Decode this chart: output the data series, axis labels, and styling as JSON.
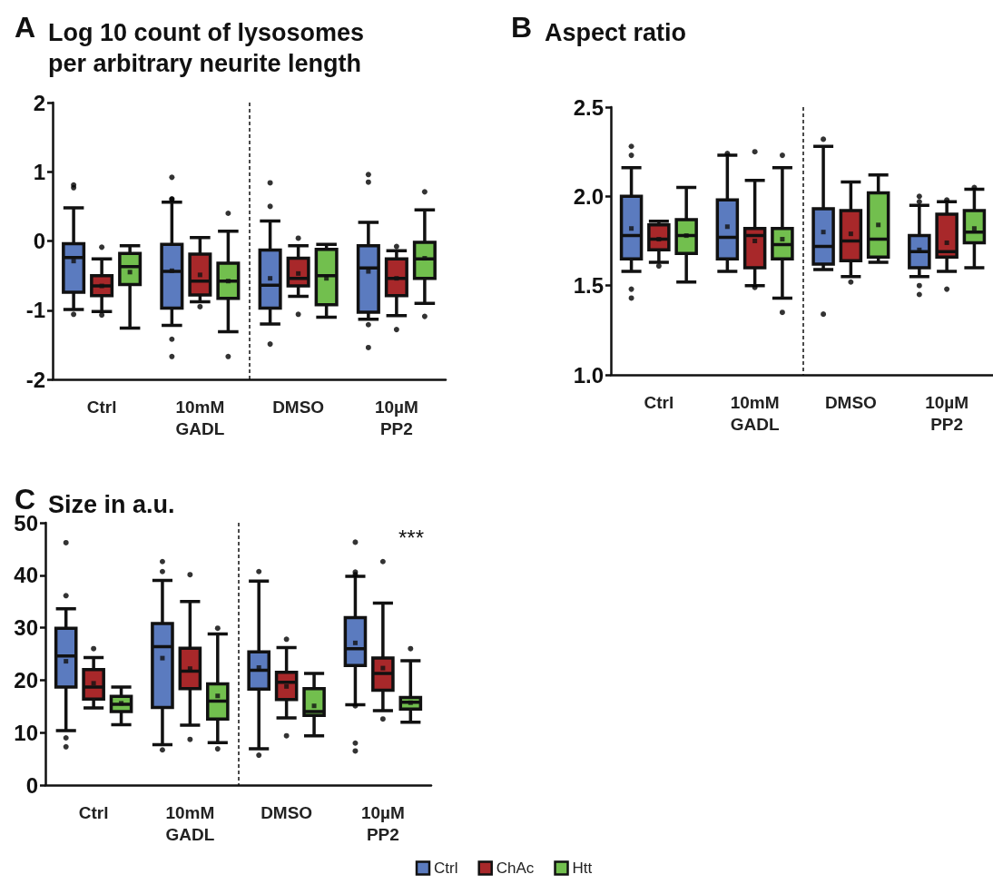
{
  "chart_data": [
    {
      "type": "box",
      "title": "Log 10 count of lysosomes per arbitrary neurite length",
      "annotations": [
        "A"
      ],
      "categories": [
        "Ctrl",
        "10mM\nGADL",
        "DMSO",
        "10µM\nPP2"
      ],
      "ylim": [
        -2,
        2
      ],
      "yticks": [
        -2,
        -1,
        0,
        1,
        2
      ],
      "series": [
        {
          "color": "#5b7bbf",
          "boxes": [
            {
              "low": -0.99,
              "q1": -0.74,
              "median": -0.24,
              "q3": -0.04,
              "high": 0.48,
              "mean": -0.29,
              "outliers": [
                0.81,
                0.77,
                -1.06
              ]
            },
            {
              "low": -1.22,
              "q1": -0.97,
              "median": -0.44,
              "q3": -0.05,
              "high": 0.56,
              "mean": -0.43,
              "outliers": [
                0.92,
                0.61,
                0.6,
                -1.42,
                -1.67
              ]
            },
            {
              "low": -1.2,
              "q1": -0.97,
              "median": -0.64,
              "q3": -0.13,
              "high": 0.29,
              "mean": -0.54,
              "outliers": [
                0.84,
                0.5,
                -1.49
              ]
            },
            {
              "low": -1.13,
              "q1": -1.03,
              "median": -0.39,
              "q3": -0.07,
              "high": 0.27,
              "mean": -0.44,
              "outliers": [
                0.96,
                0.85,
                -1.21,
                -1.54
              ]
            }
          ]
        },
        {
          "color": "#a8282a",
          "boxes": [
            {
              "low": -1.02,
              "q1": -0.79,
              "median": -0.65,
              "q3": -0.5,
              "high": -0.26,
              "mean": -0.65,
              "outliers": [
                -0.09,
                -1.07
              ]
            },
            {
              "low": -0.88,
              "q1": -0.78,
              "median": -0.58,
              "q3": -0.19,
              "high": 0.05,
              "mean": -0.49,
              "outliers": [
                -0.95
              ]
            },
            {
              "low": -0.8,
              "q1": -0.65,
              "median": -0.54,
              "q3": -0.25,
              "high": -0.07,
              "mean": -0.47,
              "outliers": [
                0.04,
                -1.06
              ]
            },
            {
              "low": -1.08,
              "q1": -0.79,
              "median": -0.54,
              "q3": -0.26,
              "high": -0.14,
              "mean": -0.54,
              "outliers": [
                -0.08,
                -1.28
              ]
            }
          ]
        },
        {
          "color": "#72bf4e",
          "boxes": [
            {
              "low": -1.26,
              "q1": -0.63,
              "median": -0.37,
              "q3": -0.18,
              "high": -0.07,
              "mean": -0.45
            },
            {
              "low": -1.31,
              "q1": -0.83,
              "median": -0.58,
              "q3": -0.32,
              "high": 0.14,
              "mean": -0.58,
              "outliers": [
                0.4,
                -1.67
              ]
            },
            {
              "low": -1.1,
              "q1": -0.92,
              "median": -0.5,
              "q3": -0.12,
              "high": -0.05,
              "mean": -0.54
            },
            {
              "low": -0.9,
              "q1": -0.54,
              "median": -0.26,
              "q3": -0.02,
              "high": 0.45,
              "mean": -0.25,
              "outliers": [
                0.71,
                -1.09
              ]
            }
          ]
        }
      ]
    },
    {
      "type": "box",
      "title": "Aspect ratio",
      "annotations": [
        "B"
      ],
      "categories": [
        "Ctrl",
        "10mM\nGADL",
        "DMSO",
        "10µM\nPP2"
      ],
      "ylim": [
        1,
        2.5
      ],
      "yticks": [
        {
          "value": 1,
          "label": "1.0"
        },
        1.5,
        {
          "value": 2,
          "label": "2.0"
        },
        2.5
      ],
      "series": [
        {
          "color": "#5b7bbf",
          "boxes": [
            {
              "low": 1.58,
              "q1": 1.65,
              "median": 1.78,
              "q3": 2.0,
              "high": 2.16,
              "mean": 1.82,
              "outliers": [
                2.28,
                2.23,
                1.48,
                1.43
              ]
            },
            {
              "low": 1.58,
              "q1": 1.65,
              "median": 1.77,
              "q3": 1.98,
              "high": 2.23,
              "mean": 1.83,
              "outliers": [
                2.24
              ]
            },
            {
              "low": 1.59,
              "q1": 1.62,
              "median": 1.72,
              "q3": 1.93,
              "high": 2.28,
              "mean": 1.8,
              "outliers": [
                2.32,
                1.34
              ]
            },
            {
              "low": 1.55,
              "q1": 1.6,
              "median": 1.69,
              "q3": 1.78,
              "high": 1.95,
              "mean": 1.7,
              "outliers": [
                2.0,
                1.97,
                1.5,
                1.45
              ]
            }
          ]
        },
        {
          "color": "#a8282a",
          "boxes": [
            {
              "low": 1.63,
              "q1": 1.7,
              "median": 1.76,
              "q3": 1.84,
              "high": 1.86,
              "mean": 1.76,
              "outliers": [
                1.61
              ]
            },
            {
              "low": 1.5,
              "q1": 1.6,
              "median": 1.78,
              "q3": 1.82,
              "high": 2.09,
              "mean": 1.75,
              "outliers": [
                2.25,
                1.49
              ]
            },
            {
              "low": 1.55,
              "q1": 1.64,
              "median": 1.75,
              "q3": 1.92,
              "high": 2.08,
              "mean": 1.79,
              "outliers": [
                1.52
              ]
            },
            {
              "low": 1.58,
              "q1": 1.66,
              "median": 1.69,
              "q3": 1.9,
              "high": 1.97,
              "mean": 1.74,
              "outliers": [
                1.98,
                1.48
              ]
            }
          ]
        },
        {
          "color": "#72bf4e",
          "boxes": [
            {
              "low": 1.52,
              "q1": 1.68,
              "median": 1.78,
              "q3": 1.87,
              "high": 2.05,
              "mean": 1.78
            },
            {
              "low": 1.43,
              "q1": 1.65,
              "median": 1.73,
              "q3": 1.82,
              "high": 2.16,
              "mean": 1.76,
              "outliers": [
                2.23,
                1.35
              ]
            },
            {
              "low": 1.63,
              "q1": 1.66,
              "median": 1.76,
              "q3": 2.02,
              "high": 2.12,
              "mean": 1.84
            },
            {
              "low": 1.6,
              "q1": 1.74,
              "median": 1.8,
              "q3": 1.92,
              "high": 2.04,
              "mean": 1.82,
              "outliers": [
                2.05
              ]
            }
          ]
        }
      ]
    },
    {
      "type": "box",
      "title": "Size in a.u.",
      "annotations": [
        "C",
        "***"
      ],
      "categories": [
        "Ctrl",
        "10mM\nGADL",
        "DMSO",
        "10µM\nPP2"
      ],
      "ylim": [
        0,
        50
      ],
      "yticks": [
        0,
        10,
        20,
        30,
        40,
        50
      ],
      "legend": "bottom",
      "series": [
        {
          "name": "Ctrl",
          "color": "#5b7bbf",
          "boxes": [
            {
              "low": 10.4,
              "q1": 18.7,
              "median": 24.6,
              "q3": 29.9,
              "high": 33.6,
              "mean": 23.6,
              "outliers": [
                46.2,
                36.1,
                9.0,
                7.3
              ]
            },
            {
              "low": 7.7,
              "q1": 14.8,
              "median": 26.4,
              "q3": 30.8,
              "high": 39.0,
              "mean": 24.2,
              "outliers": [
                42.6,
                40.7,
                6.7
              ]
            },
            {
              "low": 6.9,
              "q1": 18.3,
              "median": 21.9,
              "q3": 25.4,
              "high": 38.9,
              "mean": 22.4,
              "outliers": [
                40.7,
                5.7
              ]
            },
            {
              "low": 15.3,
              "q1": 22.8,
              "median": 26.0,
              "q3": 31.9,
              "high": 39.8,
              "mean": 27.1,
              "outliers": [
                46.3,
                40.6,
                40.1,
                15.1,
                8.0,
                6.5
              ]
            }
          ]
        },
        {
          "name": "ChAc",
          "color": "#a8282a",
          "boxes": [
            {
              "low": 14.7,
              "q1": 16.4,
              "median": 18.7,
              "q3": 22.0,
              "high": 24.3,
              "mean": 19.4,
              "outliers": [
                26.0
              ]
            },
            {
              "low": 11.4,
              "q1": 18.4,
              "median": 21.7,
              "q3": 26.1,
              "high": 35.0,
              "mean": 22.2,
              "outliers": [
                40.1,
                8.7
              ]
            },
            {
              "low": 12.8,
              "q1": 16.3,
              "median": 19.6,
              "q3": 21.5,
              "high": 26.2,
              "mean": 18.8,
              "outliers": [
                27.8,
                9.4
              ]
            },
            {
              "low": 14.2,
              "q1": 18.1,
              "median": 21.3,
              "q3": 24.2,
              "high": 34.7,
              "mean": 22.3,
              "outliers": [
                42.6,
                12.6
              ]
            }
          ]
        },
        {
          "name": "Htt",
          "color": "#72bf4e",
          "boxes": [
            {
              "low": 11.5,
              "q1": 14.0,
              "median": 15.4,
              "q3": 16.9,
              "high": 18.7,
              "mean": 15.6
            },
            {
              "low": 8.1,
              "q1": 12.6,
              "median": 16.0,
              "q3": 19.3,
              "high": 28.8,
              "mean": 17.0,
              "outliers": [
                29.9,
                6.9
              ]
            },
            {
              "low": 9.4,
              "q1": 13.3,
              "median": 14.0,
              "q3": 18.4,
              "high": 21.3,
              "mean": 15.1
            },
            {
              "low": 12.0,
              "q1": 14.5,
              "median": 15.8,
              "q3": 16.7,
              "high": 23.7,
              "mean": 15.7,
              "outliers": [
                26.0
              ]
            }
          ]
        }
      ]
    }
  ]
}
